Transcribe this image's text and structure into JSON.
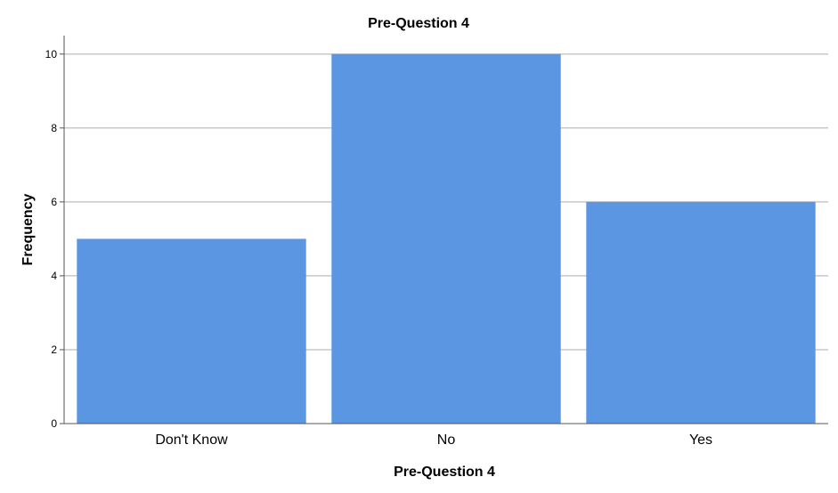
{
  "chart_data": {
    "type": "bar",
    "title": "Pre-Question 4",
    "xlabel": "Pre-Question 4",
    "ylabel": "Frequency",
    "categories": [
      "Don't Know",
      "No",
      "Yes"
    ],
    "values": [
      5,
      10,
      6
    ],
    "ylim": [
      0,
      10.5
    ],
    "yticks": [
      0,
      2,
      4,
      6,
      8,
      10
    ],
    "grid": true,
    "legend": "none",
    "colors": {
      "bar": "#5b96e3",
      "grid": "#c8c8c8",
      "axis": "#555555"
    }
  }
}
